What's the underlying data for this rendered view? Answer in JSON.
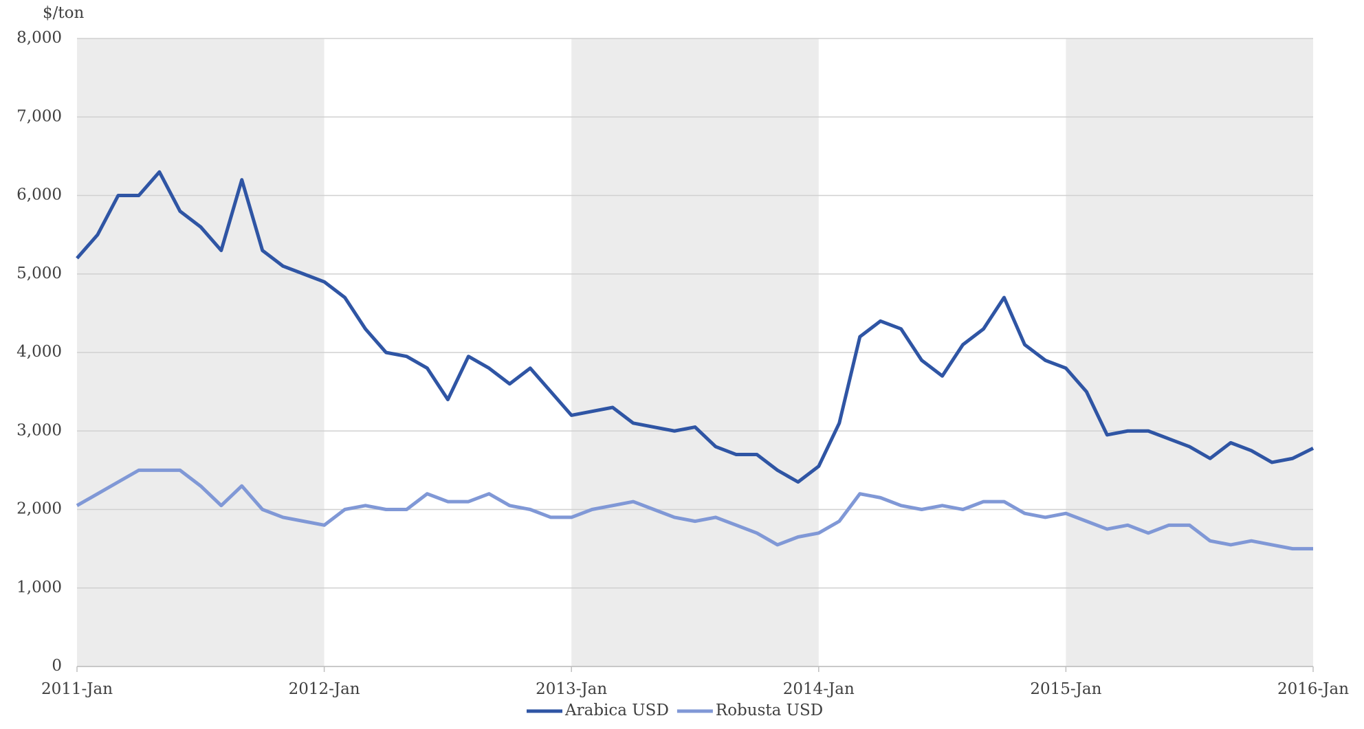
{
  "chart_data": {
    "type": "line",
    "y_label": "$/ton",
    "x": [
      "2011-Jan",
      "2011-Feb",
      "2011-Mar",
      "2011-Apr",
      "2011-May",
      "2011-Jun",
      "2011-Jul",
      "2011-Aug",
      "2011-Sep",
      "2011-Oct",
      "2011-Nov",
      "2011-Dec",
      "2012-Jan",
      "2012-Feb",
      "2012-Mar",
      "2012-Apr",
      "2012-May",
      "2012-Jun",
      "2012-Jul",
      "2012-Aug",
      "2012-Sep",
      "2012-Oct",
      "2012-Nov",
      "2012-Dec",
      "2013-Jan",
      "2013-Feb",
      "2013-Mar",
      "2013-Apr",
      "2013-May",
      "2013-Jun",
      "2013-Jul",
      "2013-Aug",
      "2013-Sep",
      "2013-Oct",
      "2013-Nov",
      "2013-Dec",
      "2014-Jan",
      "2014-Feb",
      "2014-Mar",
      "2014-Apr",
      "2014-May",
      "2014-Jun",
      "2014-Jul",
      "2014-Aug",
      "2014-Sep",
      "2014-Oct",
      "2014-Nov",
      "2014-Dec",
      "2015-Jan",
      "2015-Feb",
      "2015-Mar",
      "2015-Apr",
      "2015-May",
      "2015-Jun",
      "2015-Jul",
      "2015-Aug",
      "2015-Sep",
      "2015-Oct",
      "2015-Nov",
      "2015-Dec",
      "2016-Jan"
    ],
    "series": [
      {
        "name": "Arabica USD",
        "color": "#2f55a4",
        "values": [
          5200,
          5500,
          6000,
          6000,
          6300,
          5800,
          5600,
          5300,
          6200,
          5300,
          5100,
          5000,
          4900,
          4700,
          4300,
          4000,
          3950,
          3800,
          3400,
          3950,
          3800,
          3600,
          3800,
          3500,
          3200,
          3250,
          3300,
          3100,
          3050,
          3000,
          3050,
          2800,
          2700,
          2700,
          2500,
          2350,
          2550,
          3100,
          4200,
          4400,
          4300,
          3900,
          3700,
          4100,
          4300,
          4700,
          4100,
          3900,
          3800,
          3500,
          2950,
          3000,
          3000,
          2900,
          2800,
          2650,
          2850,
          2750,
          2600,
          2650,
          2780
        ]
      },
      {
        "name": "Robusta USD",
        "color": "#8098d6",
        "values": [
          2050,
          2200,
          2350,
          2500,
          2500,
          2500,
          2300,
          2050,
          2300,
          2000,
          1900,
          1850,
          1800,
          2000,
          2050,
          2000,
          2000,
          2200,
          2100,
          2100,
          2200,
          2050,
          2000,
          1900,
          1900,
          2000,
          2050,
          2100,
          2000,
          1900,
          1850,
          1900,
          1800,
          1700,
          1550,
          1650,
          1700,
          1850,
          2200,
          2150,
          2050,
          2000,
          2050,
          2000,
          2100,
          2100,
          1950,
          1900,
          1950,
          1850,
          1750,
          1800,
          1700,
          1800,
          1800,
          1600,
          1550,
          1600,
          1550,
          1500,
          1500
        ]
      }
    ],
    "ylim": [
      0,
      8000
    ],
    "yticks": [
      0,
      {
        "value": 1000,
        "label": "1,000"
      },
      {
        "value": 2000,
        "label": "2,000"
      },
      {
        "value": 3000,
        "label": "3,000"
      },
      {
        "value": 4000,
        "label": "4,000"
      },
      {
        "value": 5000,
        "label": "5,000"
      },
      {
        "value": 6000,
        "label": "6,000"
      },
      {
        "value": 7000,
        "label": "7,000"
      },
      {
        "value": 8000,
        "label": "8,000"
      }
    ],
    "grid": true,
    "legend": "bottom"
  }
}
